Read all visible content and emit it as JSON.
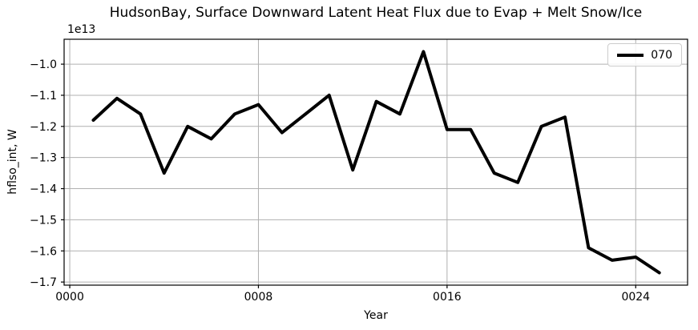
{
  "chart_data": {
    "type": "line",
    "title": "HudsonBay, Surface Downward Latent Heat Flux due to Evap + Melt Snow/Ice",
    "xlabel": "Year",
    "ylabel": "hflso_int, W",
    "offset_text": "1e13",
    "x": [
      1,
      2,
      3,
      4,
      5,
      6,
      7,
      8,
      9,
      10,
      11,
      12,
      13,
      14,
      15,
      16,
      17,
      18,
      19,
      20,
      21,
      22,
      23,
      24,
      25
    ],
    "series": [
      {
        "name": "070",
        "color": "#000000",
        "linewidth": 4,
        "values": [
          -1.18,
          -1.11,
          -1.16,
          -1.35,
          -1.2,
          -1.24,
          -1.16,
          -1.13,
          -1.22,
          -1.16,
          -1.1,
          -1.34,
          -1.12,
          -1.16,
          -0.96,
          -1.21,
          -1.21,
          -1.35,
          -1.38,
          -1.2,
          -1.17,
          -1.59,
          -1.63,
          -1.62,
          -1.67
        ]
      }
    ],
    "xlim": [
      -0.24,
      26.2
    ],
    "ylim": [
      -1.71,
      -0.92
    ],
    "xticks": {
      "values": [
        0,
        8,
        16,
        24
      ],
      "labels": [
        "0000",
        "0008",
        "0016",
        "0024"
      ]
    },
    "yticks": {
      "values": [
        -1.0,
        -1.1,
        -1.2,
        -1.3,
        -1.4,
        -1.5,
        -1.6,
        -1.7
      ],
      "labels": [
        "−1.0",
        "−1.1",
        "−1.2",
        "−1.3",
        "−1.4",
        "−1.5",
        "−1.6",
        "−1.7"
      ]
    },
    "grid": true,
    "grid_color": "#b0b0b0",
    "axis_color": "#000000",
    "background": "#ffffff",
    "legend": {
      "position": "upper right",
      "entries": [
        {
          "label": "070",
          "color": "#000000"
        }
      ]
    }
  }
}
